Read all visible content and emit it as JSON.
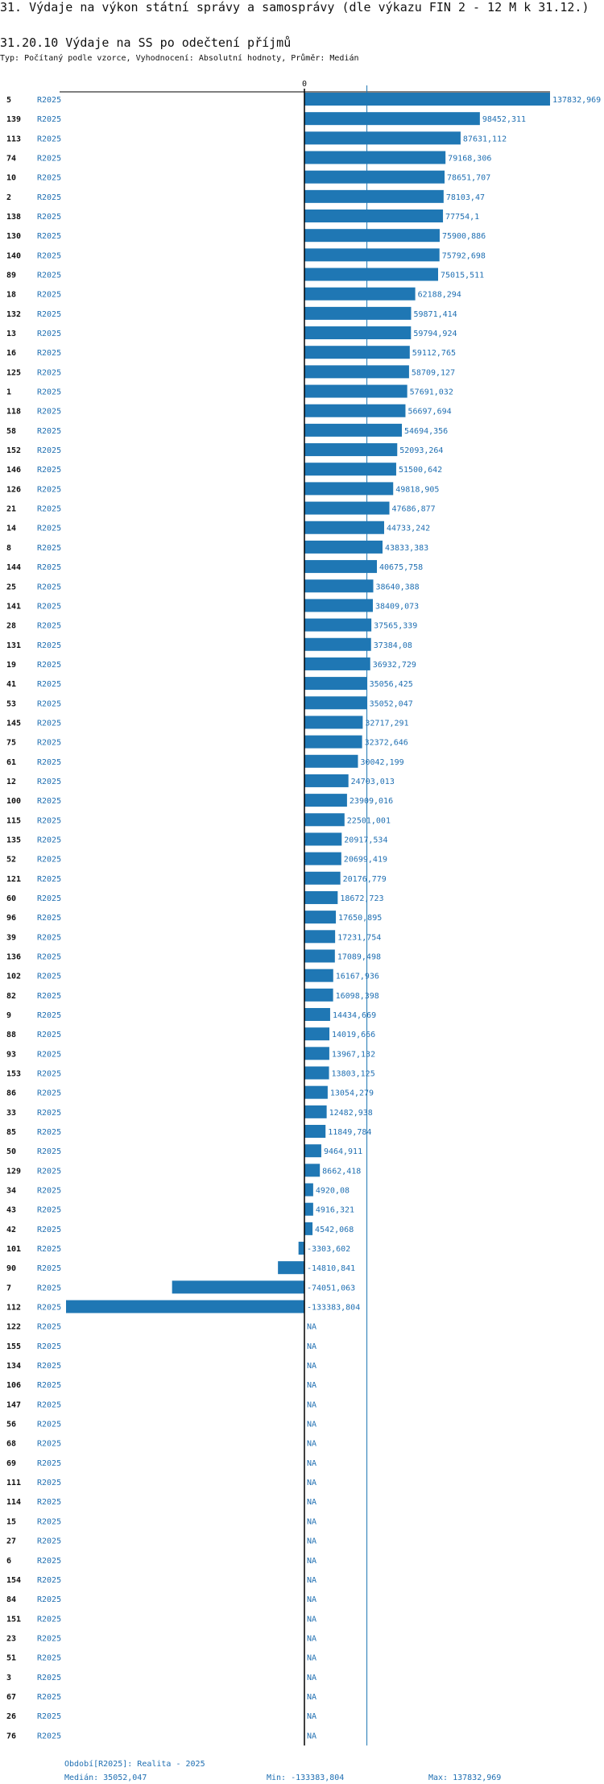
{
  "title": "31. Výdaje na výkon státní správy a samosprávy (dle výkazu FIN 2 - 12 M k 31.12.)",
  "subtitle": "31.20.10 Výdaje na SS po odečtení příjmů",
  "type_line": "Typ: Počítaný podle vzorce, Vyhodnocení: Absolutní hodnoty, Průměr: Medián",
  "footer": {
    "period": "Období[R2025]: Realita - 2025",
    "median": "Medián: 35052,047",
    "min": "Min: -133383,804",
    "max": "Max: 137832,969"
  },
  "colors": {
    "bar": "#1f77b4",
    "label": "#1f6fb2",
    "axis": "#000000"
  },
  "chart_data": {
    "type": "bar",
    "orientation": "horizontal",
    "title": "31.20.10 Výdaje na SS po odečtení příjmů",
    "series_name": "R2025",
    "zero_tick_label": "0",
    "median": 35052.047,
    "min": -133383.804,
    "max": 137832.969,
    "rows": [
      {
        "id": "5",
        "series": "R2025",
        "value": 137832.969,
        "label": "137832,969"
      },
      {
        "id": "139",
        "series": "R2025",
        "value": 98452.311,
        "label": "98452,311"
      },
      {
        "id": "113",
        "series": "R2025",
        "value": 87631.112,
        "label": "87631,112"
      },
      {
        "id": "74",
        "series": "R2025",
        "value": 79168.306,
        "label": "79168,306"
      },
      {
        "id": "10",
        "series": "R2025",
        "value": 78651.707,
        "label": "78651,707"
      },
      {
        "id": "2",
        "series": "R2025",
        "value": 78103.47,
        "label": "78103,47"
      },
      {
        "id": "138",
        "series": "R2025",
        "value": 77754.1,
        "label": "77754,1"
      },
      {
        "id": "130",
        "series": "R2025",
        "value": 75900.886,
        "label": "75900,886"
      },
      {
        "id": "140",
        "series": "R2025",
        "value": 75792.698,
        "label": "75792,698"
      },
      {
        "id": "89",
        "series": "R2025",
        "value": 75015.511,
        "label": "75015,511"
      },
      {
        "id": "18",
        "series": "R2025",
        "value": 62188.294,
        "label": "62188,294"
      },
      {
        "id": "132",
        "series": "R2025",
        "value": 59871.414,
        "label": "59871,414"
      },
      {
        "id": "13",
        "series": "R2025",
        "value": 59794.924,
        "label": "59794,924"
      },
      {
        "id": "16",
        "series": "R2025",
        "value": 59112.765,
        "label": "59112,765"
      },
      {
        "id": "125",
        "series": "R2025",
        "value": 58709.127,
        "label": "58709,127"
      },
      {
        "id": "1",
        "series": "R2025",
        "value": 57691.032,
        "label": "57691,032"
      },
      {
        "id": "118",
        "series": "R2025",
        "value": 56697.694,
        "label": "56697,694"
      },
      {
        "id": "58",
        "series": "R2025",
        "value": 54694.356,
        "label": "54694,356"
      },
      {
        "id": "152",
        "series": "R2025",
        "value": 52093.264,
        "label": "52093,264"
      },
      {
        "id": "146",
        "series": "R2025",
        "value": 51500.642,
        "label": "51500,642"
      },
      {
        "id": "126",
        "series": "R2025",
        "value": 49818.905,
        "label": "49818,905"
      },
      {
        "id": "21",
        "series": "R2025",
        "value": 47686.877,
        "label": "47686,877"
      },
      {
        "id": "14",
        "series": "R2025",
        "value": 44733.242,
        "label": "44733,242"
      },
      {
        "id": "8",
        "series": "R2025",
        "value": 43833.383,
        "label": "43833,383"
      },
      {
        "id": "144",
        "series": "R2025",
        "value": 40675.758,
        "label": "40675,758"
      },
      {
        "id": "25",
        "series": "R2025",
        "value": 38640.388,
        "label": "38640,388"
      },
      {
        "id": "141",
        "series": "R2025",
        "value": 38409.073,
        "label": "38409,073"
      },
      {
        "id": "28",
        "series": "R2025",
        "value": 37565.339,
        "label": "37565,339"
      },
      {
        "id": "131",
        "series": "R2025",
        "value": 37384.08,
        "label": "37384,08"
      },
      {
        "id": "19",
        "series": "R2025",
        "value": 36932.729,
        "label": "36932,729"
      },
      {
        "id": "41",
        "series": "R2025",
        "value": 35056.425,
        "label": "35056,425"
      },
      {
        "id": "53",
        "series": "R2025",
        "value": 35052.047,
        "label": "35052,047"
      },
      {
        "id": "145",
        "series": "R2025",
        "value": 32717.291,
        "label": "32717,291"
      },
      {
        "id": "75",
        "series": "R2025",
        "value": 32372.646,
        "label": "32372,646"
      },
      {
        "id": "61",
        "series": "R2025",
        "value": 30042.199,
        "label": "30042,199"
      },
      {
        "id": "12",
        "series": "R2025",
        "value": 24703.013,
        "label": "24703,013"
      },
      {
        "id": "100",
        "series": "R2025",
        "value": 23909.016,
        "label": "23909,016"
      },
      {
        "id": "115",
        "series": "R2025",
        "value": 22501.001,
        "label": "22501,001"
      },
      {
        "id": "135",
        "series": "R2025",
        "value": 20917.534,
        "label": "20917,534"
      },
      {
        "id": "52",
        "series": "R2025",
        "value": 20699.419,
        "label": "20699,419"
      },
      {
        "id": "121",
        "series": "R2025",
        "value": 20176.779,
        "label": "20176,779"
      },
      {
        "id": "60",
        "series": "R2025",
        "value": 18672.723,
        "label": "18672,723"
      },
      {
        "id": "96",
        "series": "R2025",
        "value": 17650.895,
        "label": "17650,895"
      },
      {
        "id": "39",
        "series": "R2025",
        "value": 17231.754,
        "label": "17231,754"
      },
      {
        "id": "136",
        "series": "R2025",
        "value": 17089.498,
        "label": "17089,498"
      },
      {
        "id": "102",
        "series": "R2025",
        "value": 16167.936,
        "label": "16167,936"
      },
      {
        "id": "82",
        "series": "R2025",
        "value": 16098.398,
        "label": "16098,398"
      },
      {
        "id": "9",
        "series": "R2025",
        "value": 14434.669,
        "label": "14434,669"
      },
      {
        "id": "88",
        "series": "R2025",
        "value": 14019.666,
        "label": "14019,666"
      },
      {
        "id": "93",
        "series": "R2025",
        "value": 13967.132,
        "label": "13967,132"
      },
      {
        "id": "153",
        "series": "R2025",
        "value": 13803.125,
        "label": "13803,125"
      },
      {
        "id": "86",
        "series": "R2025",
        "value": 13054.279,
        "label": "13054,279"
      },
      {
        "id": "33",
        "series": "R2025",
        "value": 12482.938,
        "label": "12482,938"
      },
      {
        "id": "85",
        "series": "R2025",
        "value": 11849.784,
        "label": "11849,784"
      },
      {
        "id": "50",
        "series": "R2025",
        "value": 9464.911,
        "label": "9464,911"
      },
      {
        "id": "129",
        "series": "R2025",
        "value": 8662.418,
        "label": "8662,418"
      },
      {
        "id": "34",
        "series": "R2025",
        "value": 4920.08,
        "label": "4920,08"
      },
      {
        "id": "43",
        "series": "R2025",
        "value": 4916.321,
        "label": "4916,321"
      },
      {
        "id": "42",
        "series": "R2025",
        "value": 4542.068,
        "label": "4542,068"
      },
      {
        "id": "101",
        "series": "R2025",
        "value": -3303.602,
        "label": "-3303,602"
      },
      {
        "id": "90",
        "series": "R2025",
        "value": -14810.841,
        "label": "-14810,841"
      },
      {
        "id": "7",
        "series": "R2025",
        "value": -74051.063,
        "label": "-74051,063"
      },
      {
        "id": "112",
        "series": "R2025",
        "value": -133383.804,
        "label": "-133383,804"
      },
      {
        "id": "122",
        "series": "R2025",
        "value": null,
        "label": "NA"
      },
      {
        "id": "155",
        "series": "R2025",
        "value": null,
        "label": "NA"
      },
      {
        "id": "134",
        "series": "R2025",
        "value": null,
        "label": "NA"
      },
      {
        "id": "106",
        "series": "R2025",
        "value": null,
        "label": "NA"
      },
      {
        "id": "147",
        "series": "R2025",
        "value": null,
        "label": "NA"
      },
      {
        "id": "56",
        "series": "R2025",
        "value": null,
        "label": "NA"
      },
      {
        "id": "68",
        "series": "R2025",
        "value": null,
        "label": "NA"
      },
      {
        "id": "69",
        "series": "R2025",
        "value": null,
        "label": "NA"
      },
      {
        "id": "111",
        "series": "R2025",
        "value": null,
        "label": "NA"
      },
      {
        "id": "114",
        "series": "R2025",
        "value": null,
        "label": "NA"
      },
      {
        "id": "15",
        "series": "R2025",
        "value": null,
        "label": "NA"
      },
      {
        "id": "27",
        "series": "R2025",
        "value": null,
        "label": "NA"
      },
      {
        "id": "6",
        "series": "R2025",
        "value": null,
        "label": "NA"
      },
      {
        "id": "154",
        "series": "R2025",
        "value": null,
        "label": "NA"
      },
      {
        "id": "84",
        "series": "R2025",
        "value": null,
        "label": "NA"
      },
      {
        "id": "151",
        "series": "R2025",
        "value": null,
        "label": "NA"
      },
      {
        "id": "23",
        "series": "R2025",
        "value": null,
        "label": "NA"
      },
      {
        "id": "51",
        "series": "R2025",
        "value": null,
        "label": "NA"
      },
      {
        "id": "3",
        "series": "R2025",
        "value": null,
        "label": "NA"
      },
      {
        "id": "67",
        "series": "R2025",
        "value": null,
        "label": "NA"
      },
      {
        "id": "26",
        "series": "R2025",
        "value": null,
        "label": "NA"
      },
      {
        "id": "76",
        "series": "R2025",
        "value": null,
        "label": "NA"
      }
    ]
  }
}
